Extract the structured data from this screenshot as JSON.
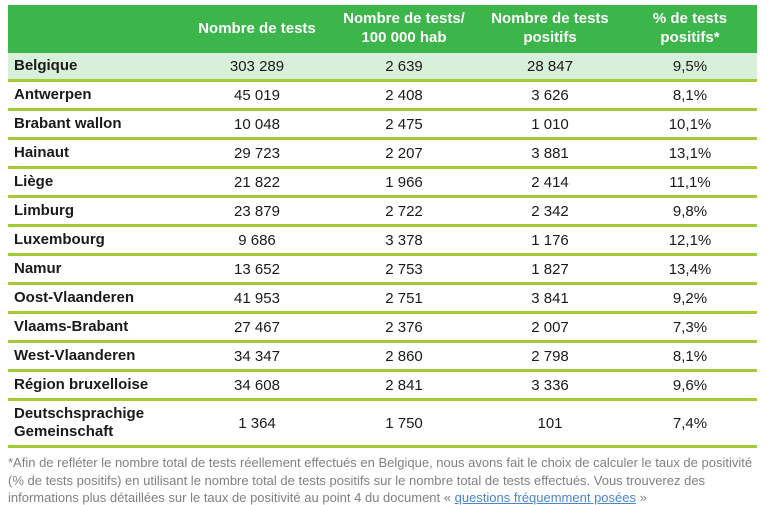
{
  "chart_data": {
    "type": "table",
    "columns": [
      "",
      "Nombre de tests",
      "Nombre de tests/\n100 000 hab",
      "Nombre de tests\npositifs",
      "% de tests\npositifs*"
    ],
    "rows": [
      {
        "region": "Belgique",
        "tests": "303 289",
        "per_100k": "2 639",
        "positives": "28 847",
        "positivity": "9,5%",
        "highlight": true
      },
      {
        "region": "Antwerpen",
        "tests": "45 019",
        "per_100k": "2 408",
        "positives": "3 626",
        "positivity": "8,1%",
        "highlight": false
      },
      {
        "region": "Brabant wallon",
        "tests": "10 048",
        "per_100k": "2 475",
        "positives": "1 010",
        "positivity": "10,1%",
        "highlight": false
      },
      {
        "region": "Hainaut",
        "tests": "29 723",
        "per_100k": "2 207",
        "positives": "3 881",
        "positivity": "13,1%",
        "highlight": false
      },
      {
        "region": "Liège",
        "tests": "21 822",
        "per_100k": "1 966",
        "positives": "2 414",
        "positivity": "11,1%",
        "highlight": false
      },
      {
        "region": "Limburg",
        "tests": "23 879",
        "per_100k": "2 722",
        "positives": "2 342",
        "positivity": "9,8%",
        "highlight": false
      },
      {
        "region": "Luxembourg",
        "tests": "9 686",
        "per_100k": "3 378",
        "positives": "1 176",
        "positivity": "12,1%",
        "highlight": false
      },
      {
        "region": "Namur",
        "tests": "13 652",
        "per_100k": "2 753",
        "positives": "1 827",
        "positivity": "13,4%",
        "highlight": false
      },
      {
        "region": "Oost-Vlaanderen",
        "tests": "41 953",
        "per_100k": "2 751",
        "positives": "3 841",
        "positivity": "9,2%",
        "highlight": false
      },
      {
        "region": "Vlaams-Brabant",
        "tests": "27 467",
        "per_100k": "2 376",
        "positives": "2 007",
        "positivity": "7,3%",
        "highlight": false
      },
      {
        "region": "West-Vlaanderen",
        "tests": "34 347",
        "per_100k": "2 860",
        "positives": "2 798",
        "positivity": "8,1%",
        "highlight": false
      },
      {
        "region": "Région bruxelloise",
        "tests": "34 608",
        "per_100k": "2 841",
        "positives": "3 336",
        "positivity": "9,6%",
        "highlight": false
      },
      {
        "region": "Deutschsprachige Gemeinschaft",
        "tests": "1 364",
        "per_100k": "1 750",
        "positives": "101",
        "positivity": "7,4%",
        "highlight": false
      }
    ]
  },
  "footnote": {
    "text_before_link": "*Afin de refléter le nombre total de tests réellement effectués en Belgique, nous avons fait le choix de calculer le taux de positivité (% de tests positifs) en utilisant le nombre total de tests positifs sur le nombre total de tests effectués. Vous trouverez des informations plus détaillées sur le taux de positivité au point 4 du document « ",
    "link_text": "questions fréquemment posées",
    "text_after_link": " »"
  },
  "colors": {
    "header_green": "#3cb54b",
    "row_highlight": "#d8efda",
    "separator": "#a6c939",
    "text_dark": "#1a1a1a",
    "footnote_gray": "#808080",
    "link_blue": "#4a86c8"
  }
}
